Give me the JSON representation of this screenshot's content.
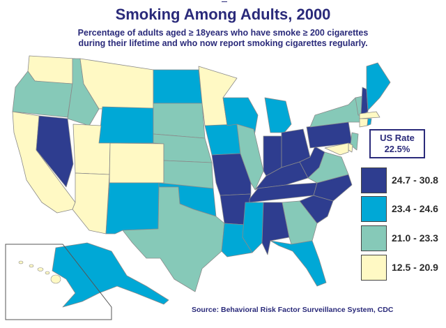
{
  "title": "Smoking Among Adults, 2000",
  "subtitle_line1": "Percentage of adults aged ≥ 18years who have smoke ≥ 200 cigarettes",
  "subtitle_line2": "during their lifetime and who now report smoking cigarettes regularly.",
  "us_rate": {
    "label": "US Rate",
    "value": "22.5%"
  },
  "legend": [
    {
      "label": "24.7 - 30.8",
      "color": "#2e3d8f"
    },
    {
      "label": "23.4 - 24.6",
      "color": "#00a8d6"
    },
    {
      "label": "21.0 - 23.3",
      "color": "#86c9b8"
    },
    {
      "label": "12.5 - 20.9",
      "color": "#fff9c4"
    }
  ],
  "source": "Source: Behavioral Risk Factor Surveillance System, CDC"
}
